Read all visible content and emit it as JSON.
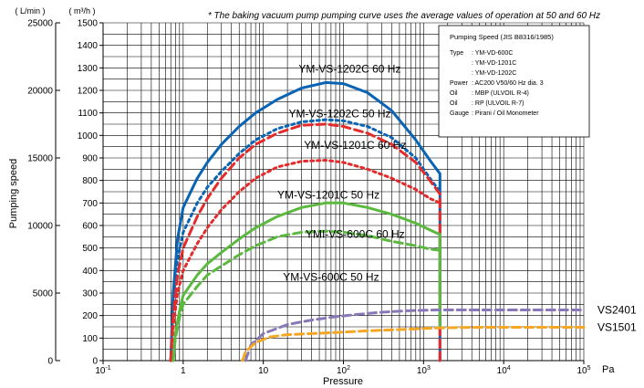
{
  "chart_data": {
    "type": "line",
    "title": "* The baking vacuum pump pumping curve uses the average values of operation at 50 and 60 Hz",
    "xlabel": "Pressure",
    "x_unit": "Pa",
    "ylabel": "Pumping speed",
    "y_left_unit": "( L/min )",
    "y_right_unit": "( m³/h )",
    "x_scale": "log",
    "xlim": [
      0.1,
      100000
    ],
    "ylim_m3h": [
      0,
      1500
    ],
    "ylim_lmin": [
      0,
      25000
    ],
    "grid": true,
    "x_ticks": [
      {
        "value": 0.1,
        "base": "10",
        "exp": "-1"
      },
      {
        "value": 1,
        "base": "1",
        "exp": ""
      },
      {
        "value": 10,
        "base": "10",
        "exp": ""
      },
      {
        "value": 100,
        "base": "10",
        "exp": "2"
      },
      {
        "value": 1000,
        "base": "10",
        "exp": "3"
      },
      {
        "value": 10000,
        "base": "10",
        "exp": "4"
      },
      {
        "value": 100000,
        "base": "10",
        "exp": "5"
      }
    ],
    "y_ticks_m3h": [
      "0",
      "100",
      "200",
      "300",
      "400",
      "500",
      "600",
      "700",
      "800",
      "900",
      "1000",
      "1100",
      "1200",
      "1300",
      "1400",
      "1500"
    ],
    "y_ticks_lmin": [
      "0",
      "5000",
      "10000",
      "15000",
      "20000",
      "25000"
    ],
    "series": [
      {
        "name": "YM-VS-1202C  60 Hz",
        "color": "#0a64b4",
        "style": "solid",
        "x": [
          0.7,
          0.75,
          0.85,
          1.0,
          1.5,
          2,
          3,
          5,
          8,
          15,
          30,
          60,
          100,
          200,
          400,
          800,
          1200,
          1600,
          1600
        ],
        "y": [
          0,
          300,
          540,
          680,
          810,
          880,
          960,
          1040,
          1100,
          1160,
          1210,
          1235,
          1230,
          1190,
          1110,
          980,
          890,
          830,
          0
        ]
      },
      {
        "name": "YM-VS-1202C  50 Hz",
        "color": "#0a64b4",
        "style": "dotted",
        "x": [
          0.7,
          0.75,
          0.85,
          1.0,
          1.5,
          2,
          3,
          5,
          8,
          15,
          30,
          60,
          100,
          200,
          400,
          800,
          1200,
          1600
        ],
        "y": [
          0,
          250,
          450,
          570,
          700,
          770,
          840,
          920,
          980,
          1030,
          1060,
          1070,
          1065,
          1040,
          990,
          900,
          810,
          750
        ]
      },
      {
        "name": "YM-VS-1201C  60 Hz",
        "color": "#e42b2b",
        "style": "dashed",
        "x": [
          0.7,
          0.75,
          0.85,
          1.0,
          1.5,
          2,
          3,
          5,
          8,
          15,
          30,
          60,
          100,
          200,
          400,
          800,
          1200,
          1600,
          1600
        ],
        "y": [
          0,
          200,
          380,
          500,
          640,
          720,
          810,
          900,
          960,
          1010,
          1045,
          1050,
          1040,
          1010,
          960,
          880,
          800,
          740,
          0
        ]
      },
      {
        "name": "YM-VS-1201C  50 Hz",
        "color": "#e42b2b",
        "style": "dotted",
        "x": [
          0.7,
          0.75,
          0.85,
          1.0,
          1.5,
          2,
          3,
          5,
          8,
          15,
          30,
          60,
          100,
          200,
          400,
          800,
          1200,
          1600
        ],
        "y": [
          0,
          150,
          300,
          400,
          520,
          590,
          670,
          750,
          810,
          860,
          885,
          890,
          880,
          850,
          810,
          760,
          720,
          700
        ]
      },
      {
        "name": "YM-VS-600C  60 Hz",
        "color": "#5cb940",
        "style": "solid",
        "x": [
          0.75,
          0.8,
          0.9,
          1.0,
          1.5,
          2,
          3,
          5,
          8,
          15,
          30,
          60,
          100,
          200,
          400,
          800,
          1200,
          1600,
          1600
        ],
        "y": [
          0,
          120,
          220,
          290,
          380,
          430,
          480,
          540,
          590,
          640,
          680,
          700,
          700,
          680,
          650,
          610,
          580,
          560,
          150
        ]
      },
      {
        "name": "YM-VS-600C  50 Hz",
        "color": "#5cb940",
        "style": "dashed",
        "x": [
          0.75,
          0.8,
          0.9,
          1.0,
          1.5,
          2,
          3,
          5,
          8,
          15,
          30,
          60,
          100,
          200,
          400,
          800,
          1200,
          1600
        ],
        "y": [
          0,
          100,
          190,
          250,
          330,
          380,
          420,
          470,
          510,
          550,
          570,
          575,
          570,
          555,
          530,
          510,
          495,
          490
        ]
      },
      {
        "name": "VS2401",
        "color": "#8878b8",
        "style": "dashed",
        "x": [
          6,
          7,
          10,
          20,
          40,
          80,
          150,
          300,
          700,
          1500,
          5000,
          20000,
          100000
        ],
        "y": [
          0,
          70,
          120,
          160,
          180,
          195,
          205,
          215,
          222,
          225,
          225,
          225,
          225
        ]
      },
      {
        "name": "VS1501",
        "color": "#f5a623",
        "style": "dashed",
        "x": [
          5.5,
          6,
          8,
          12,
          20,
          40,
          80,
          150,
          300,
          700,
          1500,
          5000,
          20000,
          100000
        ],
        "y": [
          0,
          40,
          80,
          105,
          115,
          120,
          125,
          130,
          135,
          140,
          145,
          148,
          148,
          148
        ]
      }
    ],
    "curve_labels": [
      {
        "text": "YM-VS-1202C  60 Hz",
        "x": 120,
        "y": 1280
      },
      {
        "text": "YM-VS-1202C  50 Hz",
        "x": 90,
        "y": 1080
      },
      {
        "text": "YM-VS-1201C  60 Hz",
        "x": 140,
        "y": 940
      },
      {
        "text": "YM-VS-1201C  50 Hz",
        "x": 65,
        "y": 720
      },
      {
        "text": "YMI-VS-600C  60 Hz",
        "x": 140,
        "y": 545
      },
      {
        "text": "YM-VS-600C  50 Hz",
        "x": 70,
        "y": 355
      }
    ],
    "series_end_labels": [
      {
        "text": "VS2401",
        "y": 225
      },
      {
        "text": "VS1501",
        "y": 148
      }
    ],
    "info_box": {
      "title": "Pumping Speed (JIS B8316/1985)",
      "rows": [
        {
          "key": "Type",
          "value": ": YM-VD-600C"
        },
        {
          "key": "",
          "value": ": YM-VD-1201C"
        },
        {
          "key": "",
          "value": ": YM-VD-1202C"
        },
        {
          "key": "Power",
          "value": ": AC200 V50/60 Hz dia. 3"
        },
        {
          "key": "Oil",
          "value": ": MBP (ULVOIL R-4)"
        },
        {
          "key": "Oil",
          "value": ": RP (ULVOIL R-7)"
        },
        {
          "key": "Gauge",
          "value": ": Pirani / Oil Monometer"
        }
      ]
    }
  }
}
